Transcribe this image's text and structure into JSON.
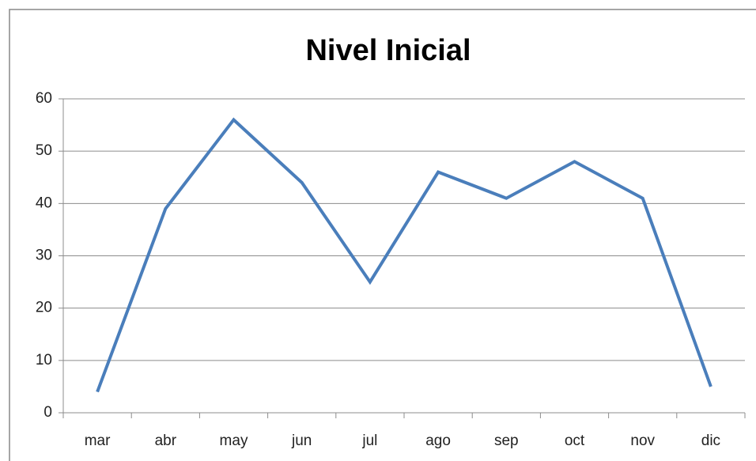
{
  "chart_data": {
    "type": "line",
    "title": "Nivel Inicial",
    "categories": [
      "mar",
      "abr",
      "may",
      "jun",
      "jul",
      "ago",
      "sep",
      "oct",
      "nov",
      "dic"
    ],
    "series": [
      {
        "name": "Nivel Inicial",
        "color": "#4a7ebb",
        "values": [
          4,
          39,
          56,
          44,
          25,
          46,
          41,
          48,
          41,
          5
        ]
      }
    ],
    "ylim": [
      0,
      60
    ],
    "yticks": [
      0,
      10,
      20,
      30,
      40,
      50,
      60
    ],
    "grid": true
  }
}
